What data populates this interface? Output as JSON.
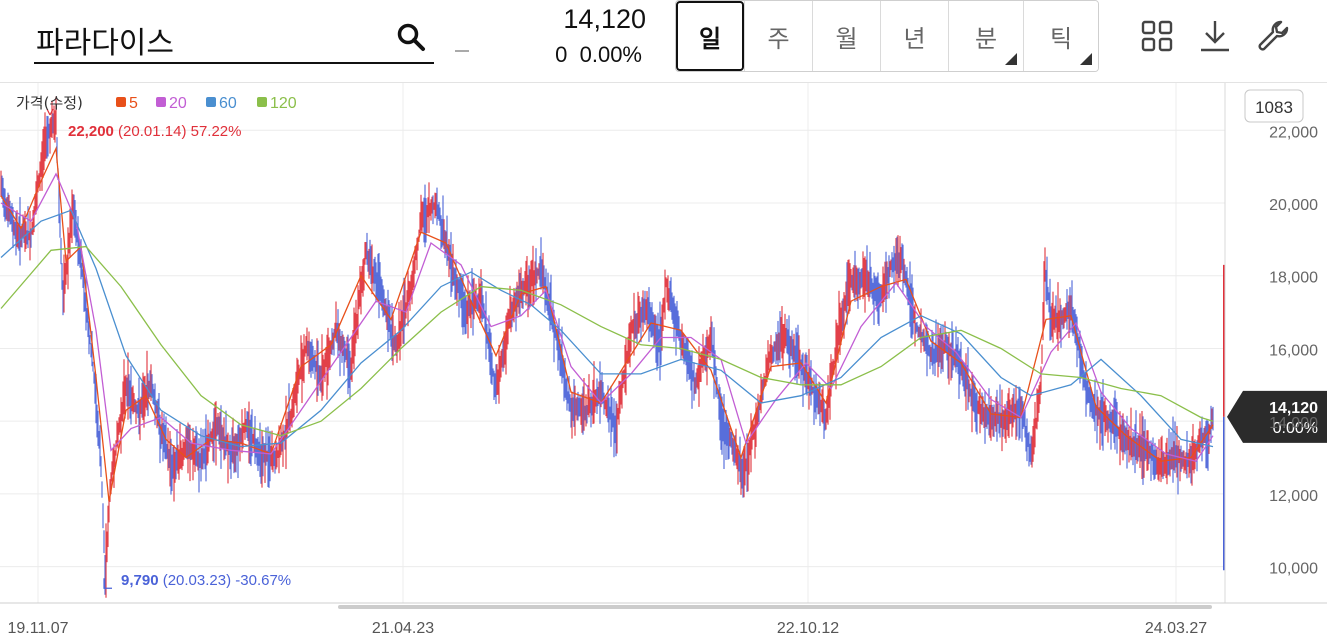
{
  "stock": {
    "name": "파라다이스",
    "price": "14,120",
    "change": "0",
    "change_pct": "0.00%"
  },
  "tabs": [
    {
      "label": "일",
      "active": true,
      "has_menu": false
    },
    {
      "label": "주",
      "active": false,
      "has_menu": false
    },
    {
      "label": "월",
      "active": false,
      "has_menu": false
    },
    {
      "label": "년",
      "active": false,
      "has_menu": false
    },
    {
      "label": "분",
      "active": false,
      "has_menu": true
    },
    {
      "label": "틱",
      "active": false,
      "has_menu": true
    }
  ],
  "toolbar": {
    "icons": [
      "grid-icon",
      "download-icon",
      "wrench-icon"
    ]
  },
  "colors": {
    "up": "#e0303a",
    "down": "#4a62d8",
    "ma5": "#e8501a",
    "ma20": "#c25ed4",
    "ma60": "#4a8fd0",
    "ma120": "#8bbf4a"
  },
  "chart_data": {
    "type": "line",
    "legend": {
      "title": "가격(수정)",
      "items": [
        "5",
        "20",
        "60",
        "120"
      ],
      "placement": "top-left"
    },
    "count_badge": "1083",
    "x_ticks": [
      "19.11.07",
      "21.04.23",
      "22.10.12",
      "24.03.27"
    ],
    "y_ticks": [
      "22,000",
      "20,000",
      "18,000",
      "16,000",
      "14,000",
      "12,000",
      "10,000"
    ],
    "ylim": [
      9000,
      23300
    ],
    "grid": true,
    "current_price": {
      "label": "14,120",
      "pct": "0.00%",
      "value": 14120
    },
    "high": {
      "price": "22,200",
      "date": "(20.01.14)",
      "pct": "57.22%",
      "value": 22200
    },
    "low": {
      "price": "9,790",
      "date": "(20.03.23)",
      "pct": "-30.67%",
      "value": 9790
    },
    "series": [
      {
        "name": "가격(수정)",
        "points": [
          [
            0,
            20400
          ],
          [
            15,
            19200
          ],
          [
            30,
            19100
          ],
          [
            45,
            21900
          ],
          [
            55,
            22200
          ],
          [
            62,
            17300
          ],
          [
            72,
            19800
          ],
          [
            80,
            18400
          ],
          [
            92,
            15500
          ],
          [
            100,
            12800
          ],
          [
            104,
            9790
          ],
          [
            110,
            12400
          ],
          [
            125,
            15000
          ],
          [
            138,
            14200
          ],
          [
            150,
            15100
          ],
          [
            160,
            13700
          ],
          [
            172,
            12700
          ],
          [
            185,
            13300
          ],
          [
            200,
            12900
          ],
          [
            215,
            13900
          ],
          [
            230,
            13100
          ],
          [
            245,
            13900
          ],
          [
            260,
            13100
          ],
          [
            275,
            12900
          ],
          [
            290,
            14200
          ],
          [
            305,
            16100
          ],
          [
            320,
            15200
          ],
          [
            335,
            16500
          ],
          [
            350,
            15500
          ],
          [
            365,
            18700
          ],
          [
            380,
            17500
          ],
          [
            395,
            16000
          ],
          [
            410,
            17700
          ],
          [
            420,
            19500
          ],
          [
            435,
            20000
          ],
          [
            450,
            18300
          ],
          [
            465,
            17000
          ],
          [
            480,
            17500
          ],
          [
            495,
            14800
          ],
          [
            510,
            17000
          ],
          [
            525,
            17700
          ],
          [
            540,
            18200
          ],
          [
            555,
            16400
          ],
          [
            570,
            14300
          ],
          [
            585,
            14300
          ],
          [
            600,
            14800
          ],
          [
            615,
            13800
          ],
          [
            630,
            16500
          ],
          [
            645,
            17100
          ],
          [
            660,
            16100
          ],
          [
            665,
            17800
          ],
          [
            680,
            16200
          ],
          [
            695,
            15000
          ],
          [
            710,
            16400
          ],
          [
            720,
            14000
          ],
          [
            730,
            13400
          ],
          [
            742,
            12500
          ],
          [
            755,
            14000
          ],
          [
            770,
            15900
          ],
          [
            785,
            16300
          ],
          [
            800,
            15500
          ],
          [
            815,
            14700
          ],
          [
            825,
            14100
          ],
          [
            838,
            16500
          ],
          [
            850,
            17900
          ],
          [
            865,
            17900
          ],
          [
            880,
            17400
          ],
          [
            890,
            18300
          ],
          [
            900,
            18500
          ],
          [
            915,
            16600
          ],
          [
            930,
            15800
          ],
          [
            945,
            16100
          ],
          [
            960,
            15500
          ],
          [
            975,
            14400
          ],
          [
            990,
            14100
          ],
          [
            1005,
            14000
          ],
          [
            1020,
            14400
          ],
          [
            1030,
            13000
          ],
          [
            1040,
            15000
          ],
          [
            1044,
            18200
          ],
          [
            1050,
            16800
          ],
          [
            1060,
            16800
          ],
          [
            1070,
            17100
          ],
          [
            1080,
            15600
          ],
          [
            1090,
            14500
          ],
          [
            1100,
            14200
          ],
          [
            1115,
            13800
          ],
          [
            1130,
            13400
          ],
          [
            1145,
            13300
          ],
          [
            1160,
            12700
          ],
          [
            1175,
            13100
          ],
          [
            1190,
            12800
          ],
          [
            1200,
            13500
          ],
          [
            1208,
            13600
          ],
          [
            1212,
            14120
          ]
        ]
      },
      {
        "name": "5",
        "points": [
          [
            0,
            20200
          ],
          [
            20,
            19300
          ],
          [
            40,
            20600
          ],
          [
            55,
            21500
          ],
          [
            65,
            18400
          ],
          [
            80,
            18800
          ],
          [
            95,
            15200
          ],
          [
            108,
            11800
          ],
          [
            125,
            14300
          ],
          [
            145,
            14700
          ],
          [
            165,
            13500
          ],
          [
            185,
            13000
          ],
          [
            210,
            13500
          ],
          [
            240,
            13400
          ],
          [
            270,
            13100
          ],
          [
            300,
            15500
          ],
          [
            330,
            16100
          ],
          [
            360,
            18000
          ],
          [
            390,
            16800
          ],
          [
            420,
            19200
          ],
          [
            445,
            18900
          ],
          [
            470,
            17300
          ],
          [
            495,
            15800
          ],
          [
            520,
            17500
          ],
          [
            545,
            17700
          ],
          [
            570,
            14800
          ],
          [
            600,
            14500
          ],
          [
            625,
            15600
          ],
          [
            650,
            16700
          ],
          [
            680,
            16500
          ],
          [
            710,
            15400
          ],
          [
            740,
            13000
          ],
          [
            770,
            15500
          ],
          [
            800,
            15600
          ],
          [
            825,
            14500
          ],
          [
            850,
            17300
          ],
          [
            880,
            17700
          ],
          [
            905,
            17900
          ],
          [
            930,
            16200
          ],
          [
            960,
            15600
          ],
          [
            990,
            14200
          ],
          [
            1020,
            14100
          ],
          [
            1045,
            16800
          ],
          [
            1070,
            16900
          ],
          [
            1095,
            14400
          ],
          [
            1125,
            13600
          ],
          [
            1160,
            12900
          ],
          [
            1190,
            13000
          ],
          [
            1212,
            13900
          ]
        ]
      },
      {
        "name": "20",
        "points": [
          [
            0,
            20000
          ],
          [
            30,
            19500
          ],
          [
            55,
            20800
          ],
          [
            75,
            19500
          ],
          [
            95,
            16500
          ],
          [
            110,
            13200
          ],
          [
            130,
            13800
          ],
          [
            160,
            14100
          ],
          [
            190,
            13400
          ],
          [
            230,
            13200
          ],
          [
            270,
            13100
          ],
          [
            300,
            14300
          ],
          [
            340,
            15900
          ],
          [
            375,
            17300
          ],
          [
            405,
            17000
          ],
          [
            430,
            18900
          ],
          [
            460,
            18300
          ],
          [
            490,
            16600
          ],
          [
            520,
            16900
          ],
          [
            545,
            17600
          ],
          [
            570,
            15500
          ],
          [
            600,
            14500
          ],
          [
            630,
            15300
          ],
          [
            660,
            16300
          ],
          [
            690,
            16300
          ],
          [
            720,
            15700
          ],
          [
            745,
            13400
          ],
          [
            775,
            14600
          ],
          [
            805,
            15600
          ],
          [
            830,
            14900
          ],
          [
            860,
            16600
          ],
          [
            895,
            17800
          ],
          [
            925,
            16600
          ],
          [
            955,
            15900
          ],
          [
            990,
            14600
          ],
          [
            1020,
            14100
          ],
          [
            1050,
            15900
          ],
          [
            1075,
            16700
          ],
          [
            1100,
            14800
          ],
          [
            1130,
            13800
          ],
          [
            1165,
            13100
          ],
          [
            1195,
            12900
          ],
          [
            1212,
            13600
          ]
        ]
      },
      {
        "name": "60",
        "points": [
          [
            0,
            18500
          ],
          [
            40,
            19500
          ],
          [
            70,
            19800
          ],
          [
            95,
            18200
          ],
          [
            125,
            15800
          ],
          [
            160,
            14300
          ],
          [
            200,
            13600
          ],
          [
            240,
            13300
          ],
          [
            280,
            13400
          ],
          [
            320,
            14300
          ],
          [
            360,
            15600
          ],
          [
            400,
            16500
          ],
          [
            440,
            17700
          ],
          [
            470,
            18100
          ],
          [
            500,
            17600
          ],
          [
            530,
            17200
          ],
          [
            560,
            16500
          ],
          [
            600,
            15300
          ],
          [
            640,
            15300
          ],
          [
            680,
            15700
          ],
          [
            720,
            15400
          ],
          [
            760,
            14500
          ],
          [
            800,
            14700
          ],
          [
            840,
            15200
          ],
          [
            880,
            16300
          ],
          [
            920,
            16900
          ],
          [
            960,
            16400
          ],
          [
            1000,
            15200
          ],
          [
            1030,
            14700
          ],
          [
            1070,
            15000
          ],
          [
            1100,
            15700
          ],
          [
            1140,
            14700
          ],
          [
            1180,
            13500
          ],
          [
            1212,
            13300
          ]
        ]
      },
      {
        "name": "120",
        "points": [
          [
            0,
            17100
          ],
          [
            50,
            18700
          ],
          [
            85,
            18800
          ],
          [
            120,
            17700
          ],
          [
            160,
            16100
          ],
          [
            200,
            14700
          ],
          [
            240,
            13900
          ],
          [
            280,
            13600
          ],
          [
            320,
            14000
          ],
          [
            360,
            14900
          ],
          [
            400,
            16000
          ],
          [
            440,
            17000
          ],
          [
            480,
            17700
          ],
          [
            520,
            17600
          ],
          [
            560,
            17200
          ],
          [
            600,
            16600
          ],
          [
            640,
            16100
          ],
          [
            680,
            16000
          ],
          [
            720,
            15700
          ],
          [
            760,
            15200
          ],
          [
            800,
            15000
          ],
          [
            840,
            15000
          ],
          [
            880,
            15500
          ],
          [
            920,
            16300
          ],
          [
            960,
            16500
          ],
          [
            1000,
            16000
          ],
          [
            1040,
            15300
          ],
          [
            1080,
            15200
          ],
          [
            1120,
            14900
          ],
          [
            1160,
            14700
          ],
          [
            1200,
            14100
          ],
          [
            1212,
            14000
          ]
        ]
      }
    ]
  }
}
